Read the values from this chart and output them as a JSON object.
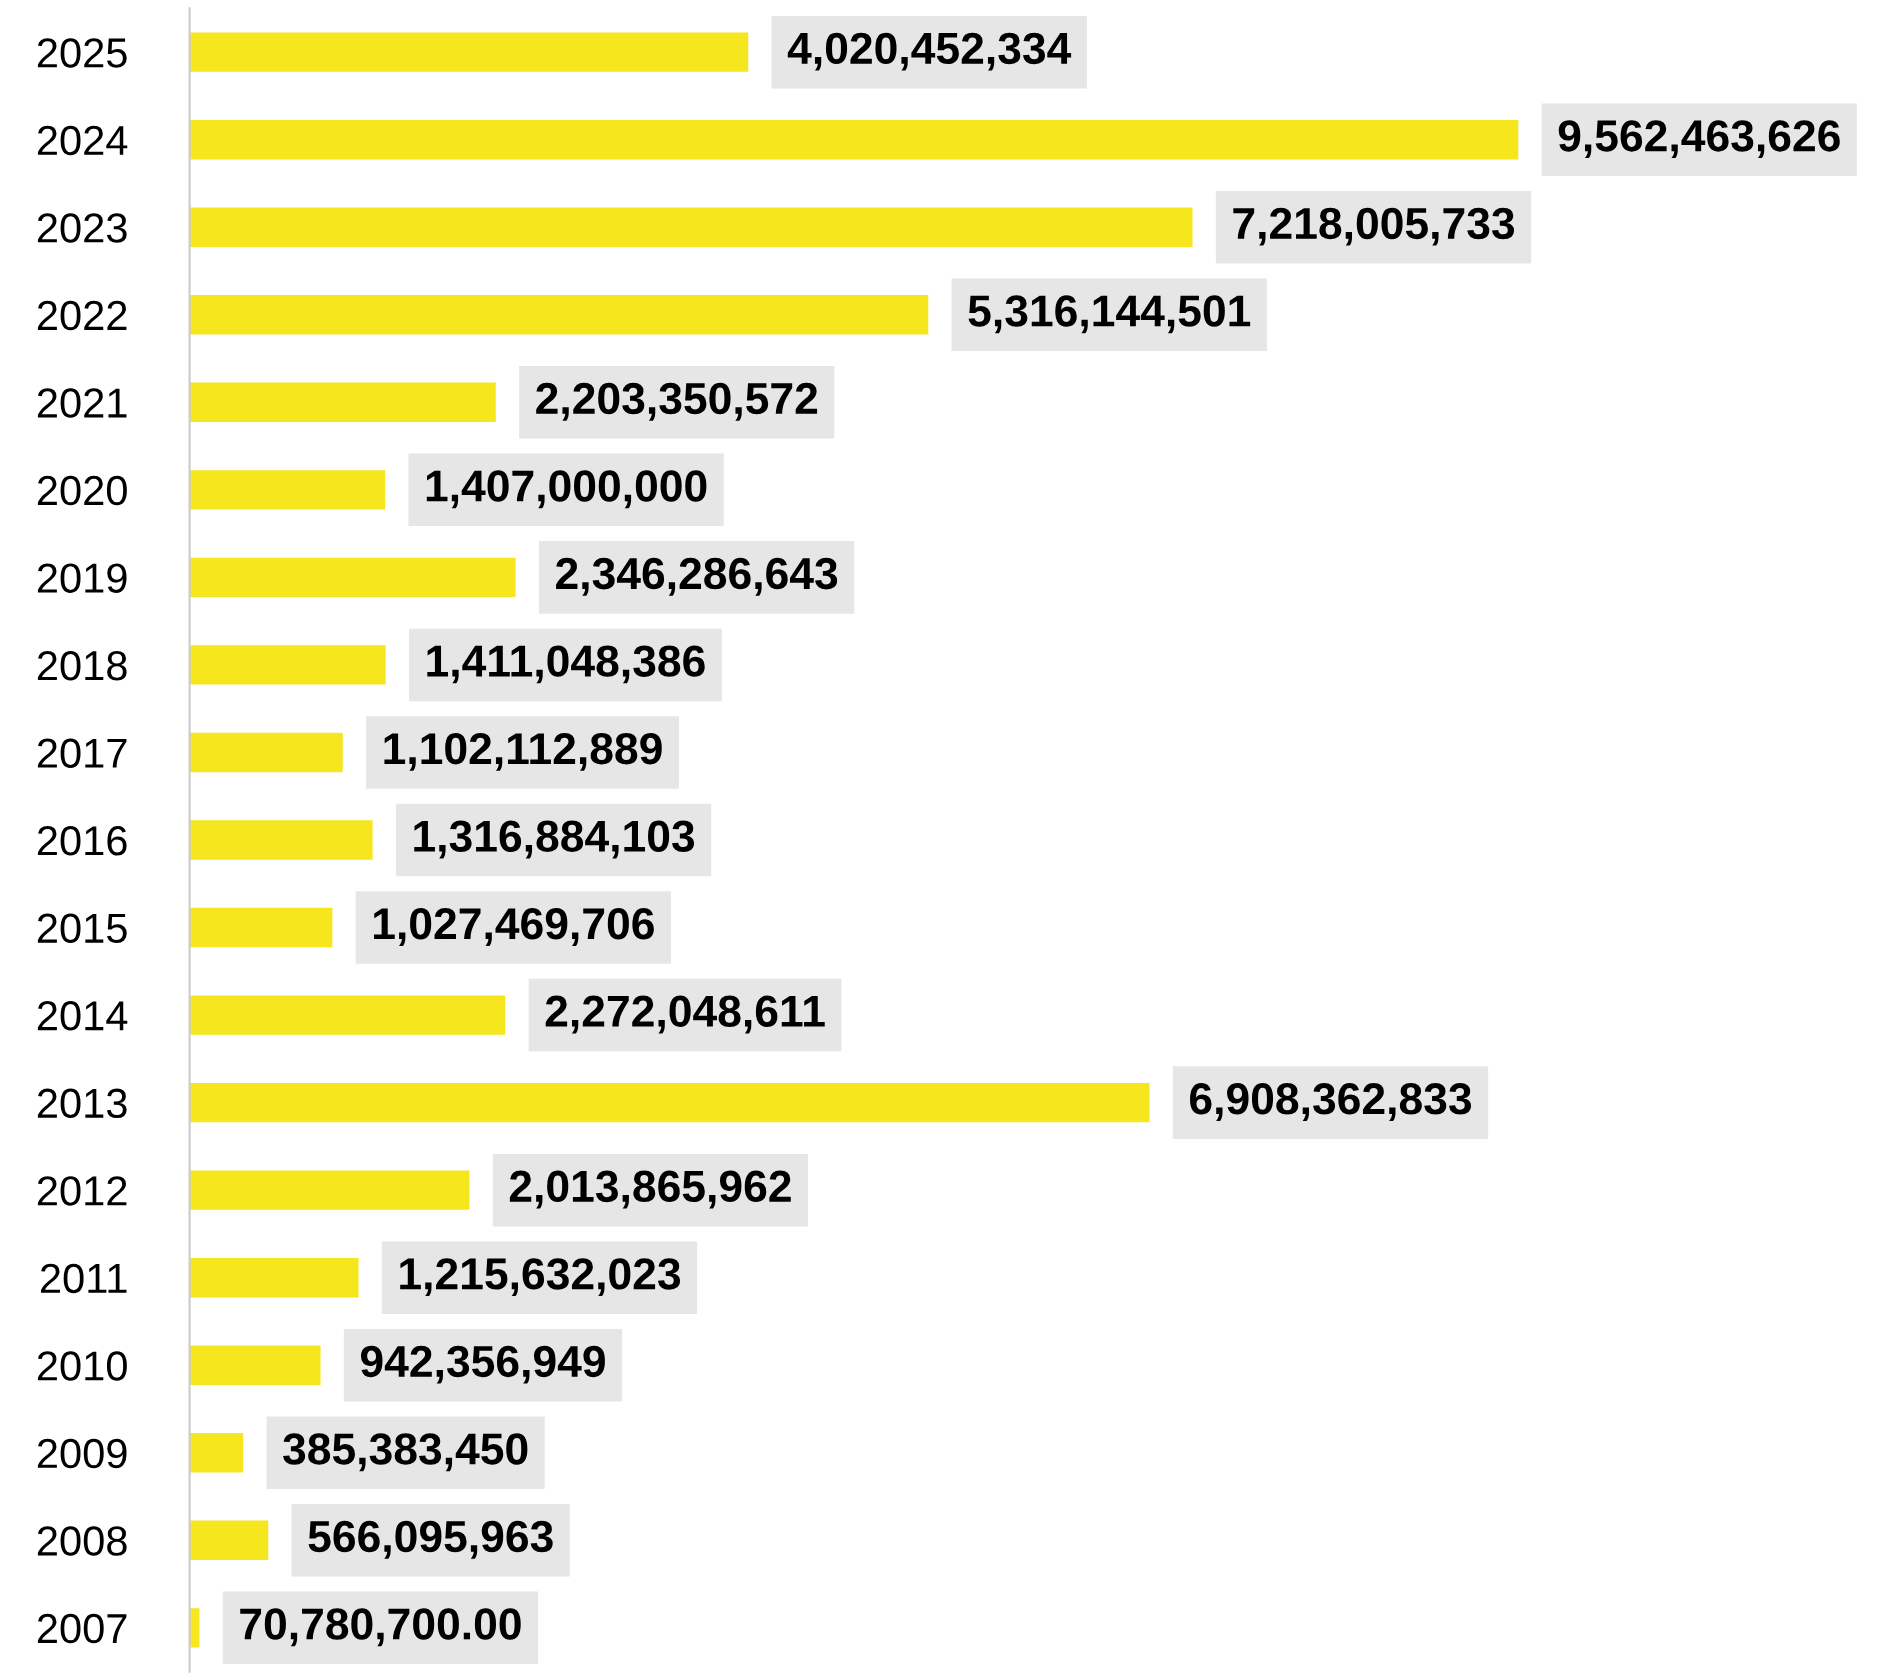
{
  "chart_data": {
    "type": "bar",
    "orientation": "horizontal",
    "color": "#f5e61e",
    "categories": [
      "2025",
      "2024",
      "2023",
      "2022",
      "2021",
      "2020",
      "2019",
      "2018",
      "2017",
      "2016",
      "2015",
      "2014",
      "2013",
      "2012",
      "2011",
      "2010",
      "2009",
      "2008",
      "2007"
    ],
    "values": [
      4020452334,
      9562463626,
      7218005733,
      5316144501,
      2203350572,
      1407000000,
      2346286643,
      1411048386,
      1102112889,
      1316884103,
      1027469706,
      2272048611,
      6908362833,
      2013865962,
      1215632023,
      942356949,
      385383450,
      566095963,
      70780700
    ],
    "value_labels": [
      "4,020,452,334",
      "9,562,463,626",
      "7,218,005,733",
      "5,316,144,501",
      "2,203,350,572",
      "1,407,000,000",
      "2,346,286,643",
      "1,411,048,386",
      "1,102,112,889",
      "1,316,884,103",
      "1,027,469,706",
      "2,272,048,611",
      "6,908,362,833",
      "2,013,865,962",
      "1,215,632,023",
      "942,356,949",
      "385,383,450",
      "566,095,963",
      "70,780,700.00"
    ],
    "grid": false
  }
}
